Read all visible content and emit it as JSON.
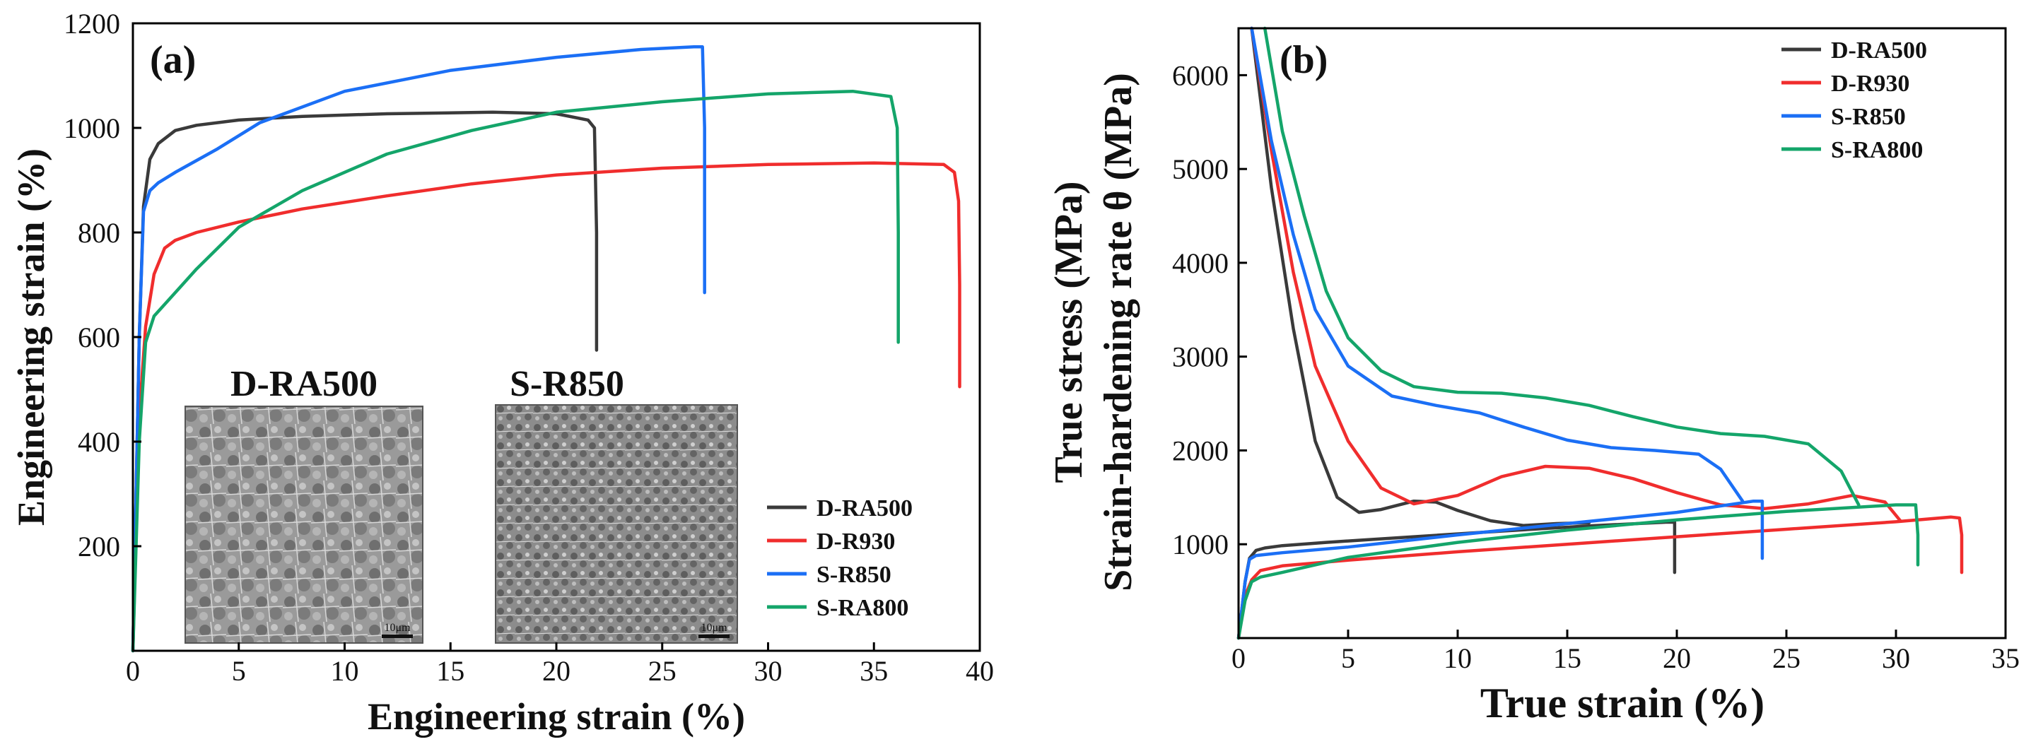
{
  "colors": {
    "D-RA500": "#3a3a3a",
    "D-R930": "#f02d2d",
    "S-R850": "#1b6ff5",
    "S-RA800": "#14a56a"
  },
  "chart_data": [
    {
      "type": "line",
      "panel_label": "(a)",
      "xlabel": "Engineering strain (%)",
      "ylabel": "Engineering strain (%)",
      "xlim": [
        0,
        40
      ],
      "ylim": [
        0,
        1200
      ],
      "xticks": [
        0,
        5,
        10,
        15,
        20,
        25,
        30,
        35,
        40
      ],
      "yticks": [
        200,
        400,
        600,
        800,
        1000,
        1200
      ],
      "legend": [
        "D-RA500",
        "D-R930",
        "S-R850",
        "S-RA800"
      ],
      "legend_position": "bottom-right",
      "insets": [
        {
          "title": "D-RA500",
          "scale_bar": "10μm"
        },
        {
          "title": "S-R850",
          "scale_bar": "10μm"
        }
      ],
      "series": [
        {
          "name": "D-RA500",
          "x": [
            0,
            0.3,
            0.5,
            0.8,
            1.2,
            2,
            3,
            5,
            8,
            12,
            17,
            20,
            21.5,
            21.8,
            21.9,
            21.9
          ],
          "y": [
            0,
            600,
            850,
            940,
            970,
            995,
            1005,
            1015,
            1022,
            1027,
            1030,
            1027,
            1015,
            1000,
            800,
            575
          ]
        },
        {
          "name": "D-R930",
          "x": [
            0,
            0.3,
            0.6,
            1,
            1.5,
            2,
            3,
            5,
            8,
            12,
            16,
            20,
            25,
            30,
            35,
            38.3,
            38.8,
            39,
            39.05,
            39.05
          ],
          "y": [
            0,
            450,
            620,
            720,
            770,
            785,
            800,
            820,
            845,
            870,
            893,
            910,
            923,
            930,
            933,
            930,
            915,
            860,
            700,
            505
          ]
        },
        {
          "name": "S-R850",
          "x": [
            0,
            0.3,
            0.5,
            0.8,
            1.2,
            2,
            4,
            6,
            10,
            15,
            20,
            24,
            26.5,
            26.9,
            27,
            27
          ],
          "y": [
            0,
            600,
            840,
            880,
            895,
            915,
            960,
            1010,
            1070,
            1110,
            1135,
            1150,
            1155,
            1155,
            1000,
            685
          ]
        },
        {
          "name": "S-RA800",
          "x": [
            0,
            0.3,
            0.6,
            1,
            2,
            3,
            5,
            8,
            12,
            16,
            20,
            25,
            30,
            34,
            35.8,
            36.1,
            36.15,
            36.15
          ],
          "y": [
            0,
            400,
            590,
            640,
            685,
            730,
            810,
            880,
            950,
            995,
            1030,
            1050,
            1065,
            1070,
            1060,
            1000,
            800,
            590
          ]
        }
      ]
    },
    {
      "type": "line",
      "panel_label": "(b)",
      "xlabel": "True strain (%)",
      "ylabel_line1": "True stress (MPa)",
      "ylabel_line2": "Strain-hardening rate θ (MPa)",
      "xlim": [
        0,
        35
      ],
      "ylim": [
        0,
        6500
      ],
      "xticks": [
        0,
        5,
        10,
        15,
        20,
        25,
        30,
        35
      ],
      "yticks": [
        1000,
        2000,
        3000,
        4000,
        5000,
        6000
      ],
      "legend": [
        "D-RA500",
        "D-R930",
        "S-R850",
        "S-RA800"
      ],
      "legend_position": "top-right",
      "series": [
        {
          "name": "D-RA500",
          "kind": "true_stress",
          "x": [
            0,
            0.3,
            0.5,
            0.8,
            1.2,
            2,
            4,
            8,
            12,
            16,
            19.5,
            19.9,
            19.9
          ],
          "y": [
            0,
            600,
            850,
            935,
            960,
            985,
            1020,
            1080,
            1140,
            1195,
            1235,
            1235,
            700
          ]
        },
        {
          "name": "D-RA500",
          "kind": "hardening_rate",
          "x": [
            0.6,
            1.5,
            2.5,
            3.5,
            4.5,
            5.5,
            6.5,
            8,
            9,
            10,
            11.5,
            13,
            14.5,
            16
          ],
          "y": [
            6500,
            4800,
            3300,
            2100,
            1500,
            1340,
            1370,
            1460,
            1450,
            1360,
            1250,
            1200,
            1220,
            1230
          ]
        },
        {
          "name": "D-R930",
          "kind": "true_stress",
          "x": [
            0,
            0.3,
            0.6,
            1,
            2,
            5,
            10,
            15,
            20,
            25,
            30,
            32.5,
            32.9,
            33,
            33
          ],
          "y": [
            0,
            450,
            620,
            720,
            770,
            830,
            920,
            1000,
            1080,
            1160,
            1240,
            1290,
            1280,
            1100,
            700
          ]
        },
        {
          "name": "D-R930",
          "kind": "hardening_rate",
          "x": [
            0.6,
            1.5,
            2.5,
            3.5,
            5,
            6.5,
            8,
            10,
            12,
            14,
            16,
            18,
            20,
            22,
            24,
            26,
            28,
            29.5,
            30.2
          ],
          "y": [
            6500,
            5200,
            3900,
            2900,
            2100,
            1600,
            1430,
            1520,
            1720,
            1830,
            1810,
            1700,
            1550,
            1420,
            1380,
            1430,
            1520,
            1450,
            1250
          ]
        },
        {
          "name": "S-R850",
          "kind": "true_stress",
          "x": [
            0,
            0.3,
            0.5,
            0.8,
            2,
            5,
            10,
            15,
            20,
            23.5,
            23.9,
            23.9
          ],
          "y": [
            0,
            600,
            840,
            880,
            910,
            970,
            1100,
            1220,
            1340,
            1460,
            1460,
            850
          ]
        },
        {
          "name": "S-R850",
          "kind": "hardening_rate",
          "x": [
            0.6,
            1.5,
            2.5,
            3.5,
            5,
            7,
            9,
            11,
            13,
            15,
            17,
            19,
            21,
            22,
            23
          ],
          "y": [
            6500,
            5300,
            4300,
            3500,
            2900,
            2580,
            2480,
            2400,
            2250,
            2110,
            2030,
            2000,
            1960,
            1800,
            1460
          ]
        },
        {
          "name": "S-RA800",
          "kind": "true_stress",
          "x": [
            0,
            0.3,
            0.6,
            1,
            2,
            5,
            10,
            15,
            20,
            25,
            30,
            30.9,
            31,
            31
          ],
          "y": [
            0,
            400,
            600,
            650,
            700,
            860,
            1020,
            1150,
            1260,
            1350,
            1420,
            1420,
            1100,
            780
          ]
        },
        {
          "name": "S-RA800",
          "kind": "hardening_rate",
          "x": [
            1.2,
            2,
            3,
            4,
            5,
            6.5,
            8,
            10,
            12,
            14,
            16,
            18,
            20,
            22,
            24,
            26,
            27.5,
            28.3
          ],
          "y": [
            6500,
            5400,
            4500,
            3700,
            3200,
            2850,
            2680,
            2620,
            2610,
            2560,
            2480,
            2360,
            2250,
            2180,
            2150,
            2070,
            1780,
            1420
          ]
        }
      ]
    }
  ]
}
